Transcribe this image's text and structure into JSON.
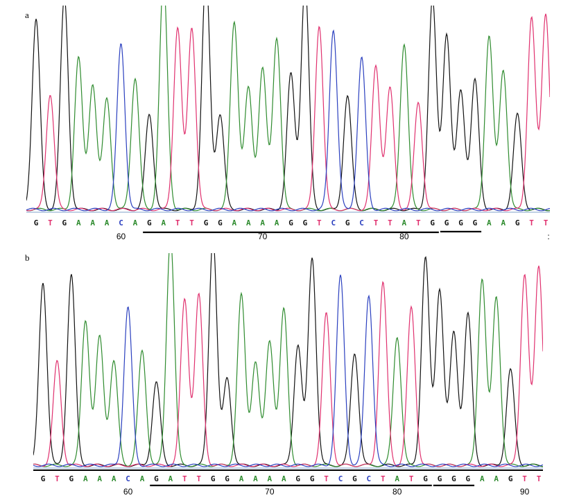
{
  "colors": {
    "A": "#2e8b2e",
    "C": "#2a3fbf",
    "G": "#111111",
    "T": "#e0306e"
  },
  "chart_data": [
    {
      "type": "chromatogram",
      "label": "a",
      "sequence": [
        "G",
        "T",
        "G",
        "A",
        "A",
        "A",
        "C",
        "A",
        "G",
        "A",
        "T",
        "T",
        "G",
        "G",
        "A",
        "A",
        "A",
        "A",
        "G",
        "G",
        "T",
        "C",
        "G",
        "C",
        "T",
        "T",
        "A",
        "T",
        "G",
        "G",
        "G",
        "G",
        "A",
        "A",
        "G",
        "T",
        "T"
      ],
      "position_ticks": [
        {
          "value": 60,
          "base_index": 6
        },
        {
          "value": 70,
          "base_index": 16
        },
        {
          "value": 80,
          "base_index": 26
        }
      ],
      "peak_heights": [
        0.94,
        0.57,
        1.05,
        0.75,
        0.62,
        0.55,
        0.82,
        0.65,
        0.47,
        1.14,
        0.9,
        0.9,
        1.17,
        0.47,
        0.93,
        0.6,
        0.7,
        0.85,
        0.67,
        1.12,
        0.91,
        0.89,
        0.56,
        0.75,
        0.71,
        0.6,
        0.82,
        0.53,
        1.04,
        0.87,
        0.59,
        0.64,
        0.86,
        0.69,
        0.47,
        0.95,
        0.97
      ],
      "underlines": [
        [
          8,
          28
        ],
        [
          29,
          31
        ]
      ],
      "trailing_mark": ":"
    },
    {
      "type": "chromatogram",
      "label": "b",
      "sequence": [
        "G",
        "T",
        "G",
        "A",
        "A",
        "A",
        "C",
        "A",
        "G",
        "A",
        "T",
        "T",
        "G",
        "G",
        "A",
        "A",
        "A",
        "A",
        "G",
        "G",
        "T",
        "C",
        "G",
        "C",
        "T",
        "A",
        "T",
        "G",
        "G",
        "G",
        "G",
        "A",
        "A",
        "G",
        "T",
        "T"
      ],
      "position_ticks": [
        {
          "value": 60,
          "base_index": 6
        },
        {
          "value": 70,
          "base_index": 16
        },
        {
          "value": 80,
          "base_index": 25
        },
        {
          "value": 90,
          "base_index": 34
        }
      ],
      "peak_heights": [
        0.88,
        0.5,
        0.92,
        0.7,
        0.62,
        0.5,
        0.76,
        0.55,
        0.4,
        1.1,
        0.8,
        0.82,
        1.1,
        0.42,
        0.82,
        0.5,
        0.6,
        0.75,
        0.58,
        1.0,
        0.73,
        0.91,
        0.54,
        0.82,
        0.88,
        0.62,
        0.76,
        1.0,
        0.85,
        0.64,
        0.73,
        0.9,
        0.81,
        0.46,
        0.92,
        0.96
      ],
      "underlines": [
        [
          8,
          27
        ],
        [
          28,
          30
        ]
      ]
    }
  ]
}
